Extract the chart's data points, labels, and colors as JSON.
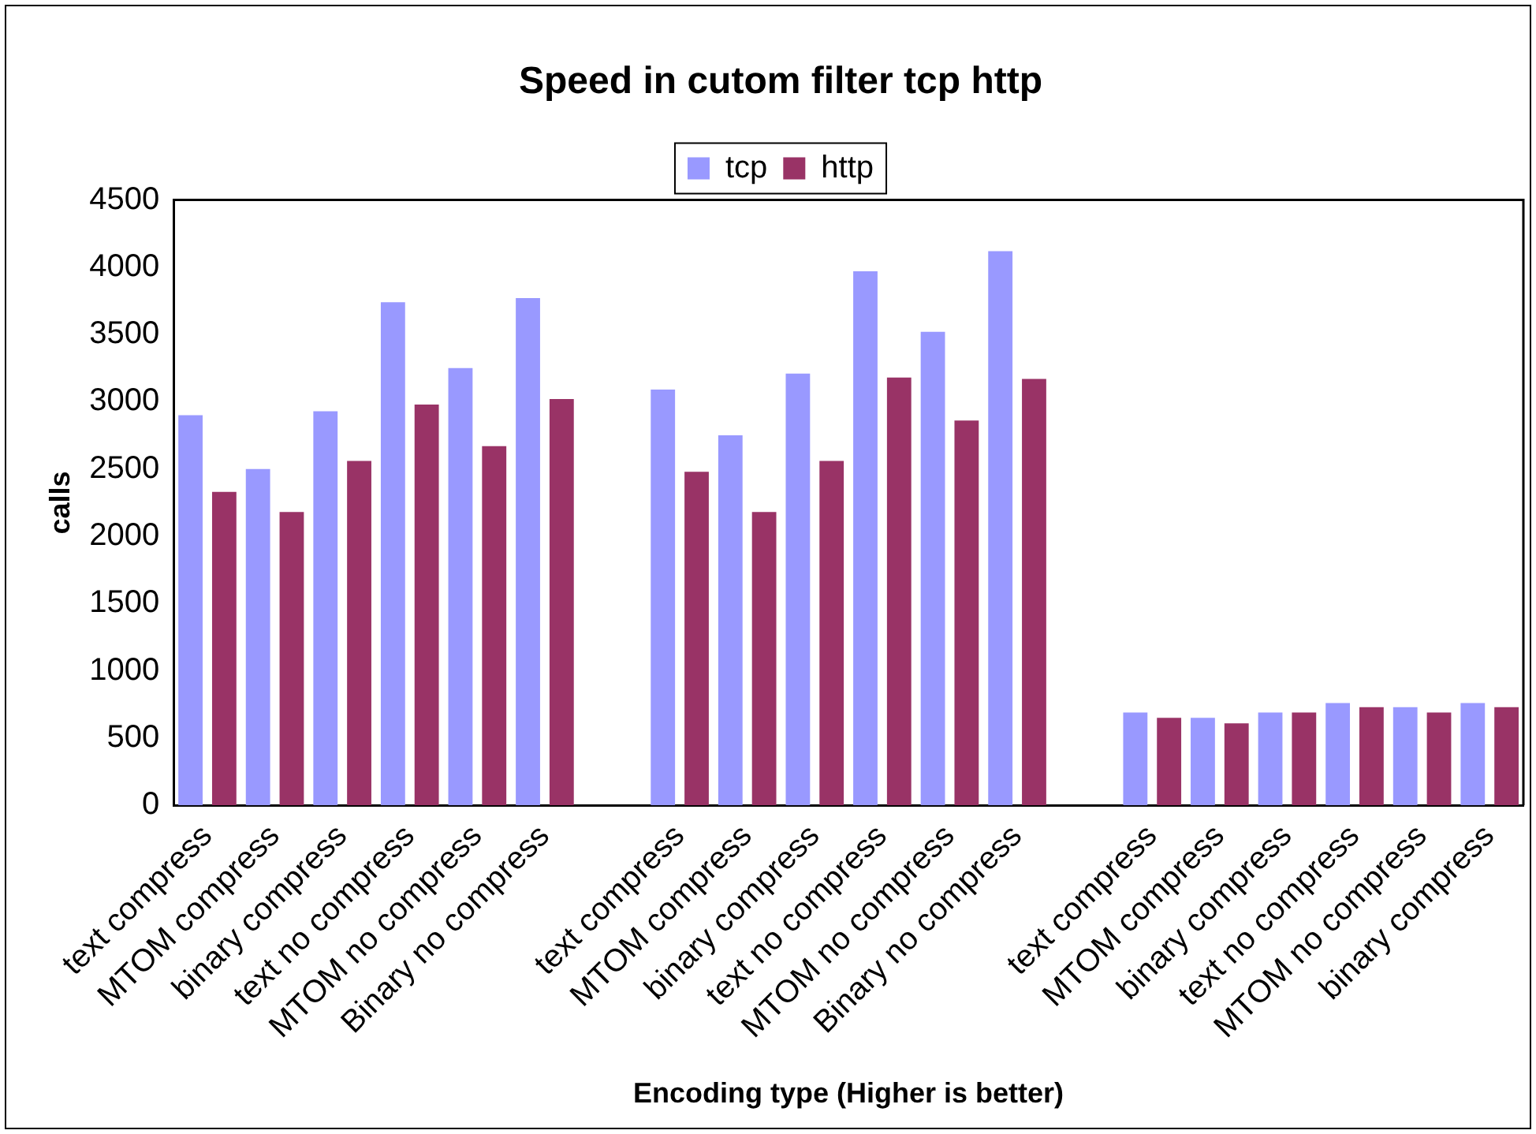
{
  "chart_data": {
    "type": "bar",
    "title": "Speed in cutom filter tcp http",
    "xlabel": "Encoding type (Higher is better)",
    "ylabel": "calls",
    "categories": [
      "text compress",
      "MTOM compress",
      "binary compress",
      "text no compress",
      "MTOM no compress",
      "Binary no compress",
      null,
      "text compress",
      "MTOM compress",
      "binary compress",
      "text no compress",
      "MTOM no compress",
      "Binary no compress",
      null,
      "text compress",
      "MTOM compress",
      "binary compress",
      "text no compress",
      "MTOM no compress",
      "binary compress"
    ],
    "series": [
      {
        "name": "tcp",
        "color": "#9999ff",
        "values": [
          2900,
          2500,
          2930,
          3740,
          3250,
          3770,
          null,
          3090,
          2750,
          3210,
          3970,
          3520,
          4120,
          null,
          690,
          650,
          690,
          760,
          730,
          760
        ]
      },
      {
        "name": "http",
        "color": "#993366",
        "values": [
          2330,
          2180,
          2560,
          2980,
          2670,
          3020,
          null,
          2480,
          2180,
          2560,
          3180,
          2860,
          3170,
          null,
          650,
          610,
          690,
          730,
          690,
          730
        ]
      }
    ],
    "ylim": [
      0,
      4500
    ],
    "yticks": [
      0,
      500,
      1000,
      1500,
      2000,
      2500,
      3000,
      3500,
      4000,
      4500
    ],
    "grid": false,
    "legend": "top"
  }
}
